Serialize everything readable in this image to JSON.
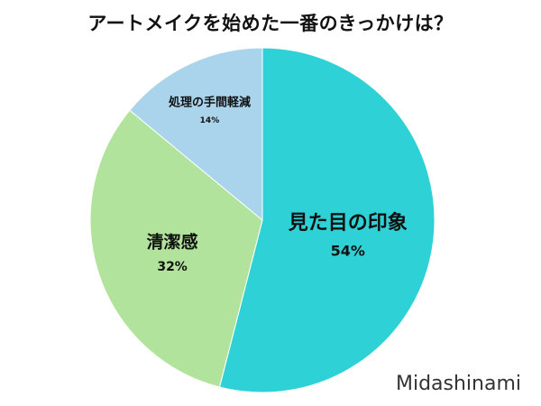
{
  "chart_data": {
    "type": "pie",
    "title": "アートメイクを始めた一番のきっかけは？",
    "slices": [
      {
        "label": "見た目の印象",
        "value": 54,
        "value_label": "54%",
        "color": "#2ed1d6"
      },
      {
        "label": "清潔感",
        "value": 32,
        "value_label": "32%",
        "color": "#b2e39c"
      },
      {
        "label": "処理の手間軽減",
        "value": 14,
        "value_label": "14%",
        "color": "#a9d4ec"
      }
    ]
  },
  "watermark": "Midashinami"
}
